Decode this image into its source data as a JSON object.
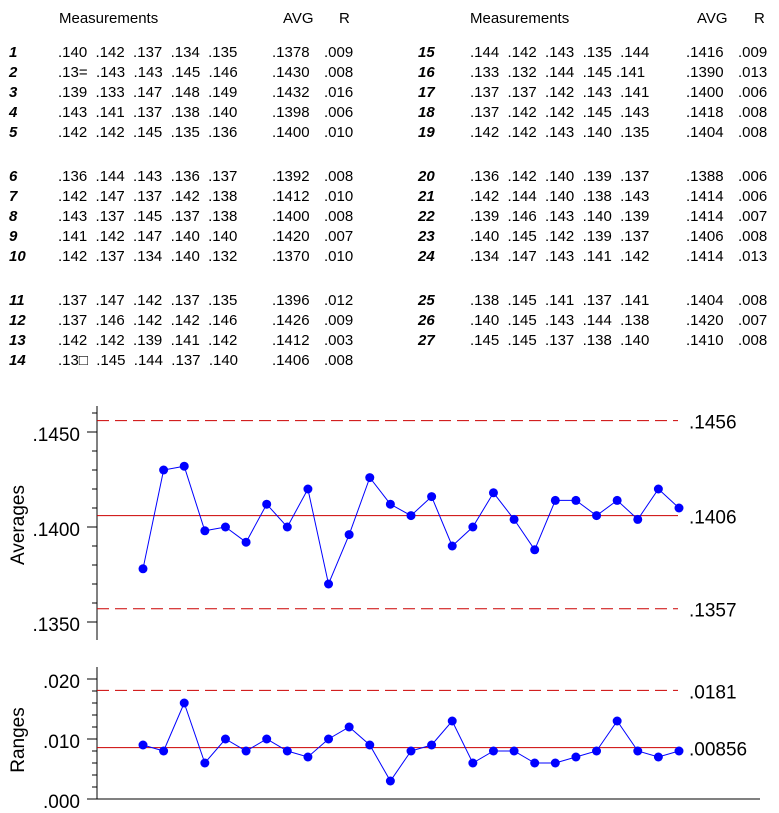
{
  "table": {
    "left": {
      "header": {
        "measurements": "Measurements",
        "avg": "AVG",
        "r": "R"
      },
      "rows": [
        {
          "n": "1",
          "m": ".140  .142  .137  .134  .135",
          "avg": ".1378",
          "r": ".009"
        },
        {
          "n": "2",
          "m": ".13=  .143  .143  .145  .146",
          "avg": ".1430",
          "r": ".008"
        },
        {
          "n": "3",
          "m": ".139  .133  .147  .148  .149",
          "avg": ".1432",
          "r": ".016"
        },
        {
          "n": "4",
          "m": ".143  .141  .137  .138  .140",
          "avg": ".1398",
          "r": ".006"
        },
        {
          "n": "5",
          "m": ".142  .142  .145  .135  .136",
          "avg": ".1400",
          "r": ".010"
        },
        {
          "n": "6",
          "m": ".136  .144  .143  .136  .137",
          "avg": ".1392",
          "r": ".008"
        },
        {
          "n": "7",
          "m": ".142  .147  .137  .142  .138",
          "avg": ".1412",
          "r": ".010"
        },
        {
          "n": "8",
          "m": ".143  .137  .145  .137  .138",
          "avg": ".1400",
          "r": ".008"
        },
        {
          "n": "9",
          "m": ".141  .142  .147  .140  .140",
          "avg": ".1420",
          "r": ".007"
        },
        {
          "n": "10",
          "m": ".142  .137  .134  .140  .132",
          "avg": ".1370",
          "r": ".010"
        },
        {
          "n": "11",
          "m": ".137  .147  .142  .137  .135",
          "avg": ".1396",
          "r": ".012"
        },
        {
          "n": "12",
          "m": ".137  .146  .142  .142  .146",
          "avg": ".1426",
          "r": ".009"
        },
        {
          "n": "13",
          "m": ".142  .142  .139  .141  .142",
          "avg": ".1412",
          "r": ".003"
        },
        {
          "n": "14",
          "m": ".13□  .145  .144  .137  .140",
          "avg": ".1406",
          "r": ".008"
        }
      ]
    },
    "right": {
      "header": {
        "measurements": "Measurements",
        "avg": "AVG",
        "r": "R"
      },
      "rows": [
        {
          "n": "15",
          "m": ".144  .142  .143  .135  .144",
          "avg": ".1416",
          "r": ".009"
        },
        {
          "n": "16",
          "m": ".133  .132  .144  .145 .141",
          "avg": ".1390",
          "r": ".013"
        },
        {
          "n": "17",
          "m": ".137  .137  .142  .143  .141",
          "avg": ".1400",
          "r": ".006"
        },
        {
          "n": "18",
          "m": ".137  .142  .142  .145  .143",
          "avg": ".1418",
          "r": ".008"
        },
        {
          "n": "19",
          "m": ".142  .142  .143  .140  .135",
          "avg": ".1404",
          "r": ".008"
        },
        {
          "n": "20",
          "m": ".136  .142  .140  .139  .137",
          "avg": ".1388",
          "r": ".006"
        },
        {
          "n": "21",
          "m": ".142  .144  .140  .138  .143",
          "avg": ".1414",
          "r": ".006"
        },
        {
          "n": "22",
          "m": ".139  .146  .143  .140  .139",
          "avg": ".1414",
          "r": ".007"
        },
        {
          "n": "23",
          "m": ".140  .145  .142  .139  .137",
          "avg": ".1406",
          "r": ".008"
        },
        {
          "n": "24",
          "m": ".134  .147  .143  .141  .142",
          "avg": ".1414",
          "r": ".013"
        },
        {
          "n": "25",
          "m": ".138  .145  .141  .137  .141",
          "avg": ".1404",
          "r": ".008"
        },
        {
          "n": "26",
          "m": ".140  .145  .143  .144  .138",
          "avg": ".1420",
          "r": ".007"
        },
        {
          "n": "27",
          "m": ".145  .145  .137  .138  .140",
          "avg": ".1410",
          "r": ".008"
        }
      ]
    }
  },
  "chart_data": [
    {
      "type": "line",
      "ylabel": "Averages",
      "ylim": [
        0.135,
        0.1465
      ],
      "yticks": [
        0.135,
        0.14,
        0.145
      ],
      "ytick_labels": [
        ".1350",
        ".1400",
        ".1450"
      ],
      "x": [
        1,
        2,
        3,
        4,
        5,
        6,
        7,
        8,
        9,
        10,
        11,
        12,
        13,
        14,
        15,
        16,
        17,
        18,
        19,
        20,
        21,
        22,
        23,
        24,
        25,
        26,
        27
      ],
      "values": [
        0.1378,
        0.143,
        0.1432,
        0.1398,
        0.14,
        0.1392,
        0.1412,
        0.14,
        0.142,
        0.137,
        0.1396,
        0.1426,
        0.1412,
        0.1406,
        0.1416,
        0.139,
        0.14,
        0.1418,
        0.1404,
        0.1388,
        0.1414,
        0.1414,
        0.1406,
        0.1414,
        0.1404,
        0.142,
        0.141
      ],
      "center_line": 0.1406,
      "ucl": 0.1456,
      "lcl": 0.1357,
      "line_labels": {
        "ucl": ".1456",
        "center": ".1406",
        "lcl": ".1357"
      },
      "grid": false,
      "series_color": "#0000ff",
      "limit_color": "#cc0000"
    },
    {
      "type": "line",
      "ylabel": "Ranges",
      "ylim": [
        0.0,
        0.02
      ],
      "yticks": [
        0.0,
        0.01,
        0.02
      ],
      "ytick_labels": [
        ".000",
        ".010",
        ".020"
      ],
      "x": [
        1,
        2,
        3,
        4,
        5,
        6,
        7,
        8,
        9,
        10,
        11,
        12,
        13,
        14,
        15,
        16,
        17,
        18,
        19,
        20,
        21,
        22,
        23,
        24,
        25,
        26,
        27
      ],
      "values": [
        0.009,
        0.008,
        0.016,
        0.006,
        0.01,
        0.008,
        0.01,
        0.008,
        0.007,
        0.01,
        0.012,
        0.009,
        0.003,
        0.008,
        0.009,
        0.013,
        0.006,
        0.008,
        0.008,
        0.006,
        0.006,
        0.007,
        0.008,
        0.013,
        0.008,
        0.007,
        0.008
      ],
      "center_line": 0.00856,
      "ucl": 0.0181,
      "line_labels": {
        "ucl": ".0181",
        "center": ".00856"
      },
      "grid": false,
      "series_color": "#0000ff",
      "limit_color": "#cc0000"
    }
  ]
}
